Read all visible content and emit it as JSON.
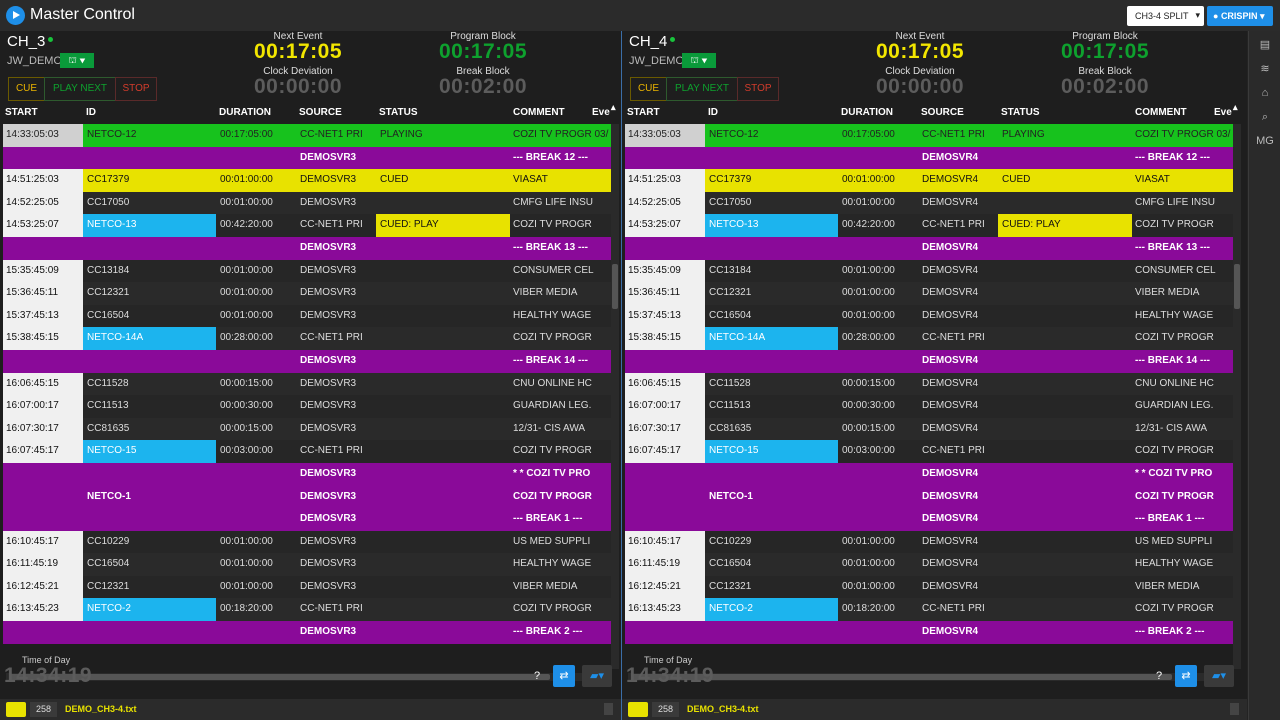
{
  "app": {
    "title": "Master Control",
    "split_select": "CH3-4 SPLIT",
    "user": "CRISPIN"
  },
  "sidebar": {
    "items": [
      "archive-icon",
      "layers-icon",
      "binoculars-icon",
      "search-icon",
      "MG"
    ]
  },
  "panels": [
    {
      "channel": "CH_3",
      "sub": "JW_DEMO",
      "next_event_label": "Next Event",
      "next_event": "00:17:05",
      "program_block_label": "Program Block",
      "program_block": "00:17:05",
      "clock_dev_label": "Clock Deviation",
      "clock_dev": "00:00:00",
      "break_block_label": "Break Block",
      "break_block": "00:02:00",
      "controls": {
        "cue": "CUE",
        "play_next": "PLAY NEXT",
        "stop": "STOP"
      },
      "columns": [
        "START",
        "ID",
        "DURATION",
        "SOURCE",
        "STATUS",
        "COMMENT",
        "Eve"
      ],
      "rows": [
        {
          "t": "playing",
          "start": "14:33:05:03",
          "id": "NETCO-12",
          "dur": "00:17:05:00",
          "src": "CC-NET1 PRI",
          "st": "PLAYING",
          "com": "COZI TV PROGR 03/"
        },
        {
          "t": "break",
          "start": "",
          "id": "",
          "dur": "",
          "src": "DEMOSVR3",
          "st": "",
          "com": "--- BREAK 12 ---"
        },
        {
          "t": "cued",
          "start": "14:51:25:03",
          "id": "CC17379",
          "dur": "00:01:00:00",
          "src": "DEMOSVR3",
          "st": "CUED",
          "com": "VIASAT"
        },
        {
          "t": "norm",
          "start": "14:52:25:05",
          "id": "CC17050",
          "dur": "00:01:00:00",
          "src": "DEMOSVR3",
          "st": "",
          "com": "CMFG LIFE INSU"
        },
        {
          "t": "norm",
          "blue": true,
          "cuedplay": true,
          "start": "14:53:25:07",
          "id": "NETCO-13",
          "dur": "00:42:20:00",
          "src": "CC-NET1 PRI",
          "st": "CUED: PLAY",
          "com": "COZI TV PROGR"
        },
        {
          "t": "break",
          "start": "",
          "id": "",
          "dur": "",
          "src": "DEMOSVR3",
          "st": "",
          "com": "--- BREAK 13 ---"
        },
        {
          "t": "norm",
          "start": "15:35:45:09",
          "id": "CC13184",
          "dur": "00:01:00:00",
          "src": "DEMOSVR3",
          "st": "",
          "com": "CONSUMER CEL"
        },
        {
          "t": "norm",
          "start": "15:36:45:11",
          "id": "CC12321",
          "dur": "00:01:00:00",
          "src": "DEMOSVR3",
          "st": "",
          "com": "VIBER MEDIA"
        },
        {
          "t": "norm",
          "start": "15:37:45:13",
          "id": "CC16504",
          "dur": "00:01:00:00",
          "src": "DEMOSVR3",
          "st": "",
          "com": "HEALTHY WAGE"
        },
        {
          "t": "norm",
          "blue": true,
          "start": "15:38:45:15",
          "id": "NETCO-14A",
          "dur": "00:28:00:00",
          "src": "CC-NET1 PRI",
          "st": "",
          "com": "COZI TV PROGR"
        },
        {
          "t": "break",
          "start": "",
          "id": "",
          "dur": "",
          "src": "DEMOSVR3",
          "st": "",
          "com": "--- BREAK 14 ---"
        },
        {
          "t": "norm",
          "start": "16:06:45:15",
          "id": "CC11528",
          "dur": "00:00:15:00",
          "src": "DEMOSVR3",
          "st": "",
          "com": "CNU ONLINE HC"
        },
        {
          "t": "norm",
          "start": "16:07:00:17",
          "id": "CC11513",
          "dur": "00:00:30:00",
          "src": "DEMOSVR3",
          "st": "",
          "com": "GUARDIAN LEG."
        },
        {
          "t": "norm",
          "start": "16:07:30:17",
          "id": "CC81635",
          "dur": "00:00:15:00",
          "src": "DEMOSVR3",
          "st": "",
          "com": "12/31- CIS AWA"
        },
        {
          "t": "norm",
          "blue": true,
          "start": "16:07:45:17",
          "id": "NETCO-15",
          "dur": "00:03:00:00",
          "src": "CC-NET1 PRI",
          "st": "",
          "com": "COZI TV PROGR"
        },
        {
          "t": "break",
          "start": "",
          "id": "",
          "dur": "",
          "src": "DEMOSVR3",
          "st": "",
          "com": "* * COZI TV PRO"
        },
        {
          "t": "break",
          "start": "",
          "id": "NETCO-1",
          "dur": "",
          "src": "DEMOSVR3",
          "st": "",
          "com": "COZI TV PROGR"
        },
        {
          "t": "break",
          "start": "",
          "id": "",
          "dur": "",
          "src": "DEMOSVR3",
          "st": "",
          "com": "--- BREAK 1 ---"
        },
        {
          "t": "norm",
          "start": "16:10:45:17",
          "id": "CC10229",
          "dur": "00:01:00:00",
          "src": "DEMOSVR3",
          "st": "",
          "com": "US MED SUPPLI"
        },
        {
          "t": "norm",
          "start": "16:11:45:19",
          "id": "CC16504",
          "dur": "00:01:00:00",
          "src": "DEMOSVR3",
          "st": "",
          "com": "HEALTHY WAGE"
        },
        {
          "t": "norm",
          "start": "16:12:45:21",
          "id": "CC12321",
          "dur": "00:01:00:00",
          "src": "DEMOSVR3",
          "st": "",
          "com": "VIBER MEDIA"
        },
        {
          "t": "norm",
          "blue": true,
          "start": "16:13:45:23",
          "id": "NETCO-2",
          "dur": "00:18:20:00",
          "src": "CC-NET1 PRI",
          "st": "",
          "com": "COZI TV PROGR"
        },
        {
          "t": "break",
          "start": "",
          "id": "",
          "dur": "",
          "src": "DEMOSVR3",
          "st": "",
          "com": "--- BREAK 2 ---"
        }
      ],
      "tod_label": "Time of Day",
      "tod": "14:34:19",
      "count": "258",
      "file": "DEMO_CH3-4.txt"
    },
    {
      "channel": "CH_4",
      "sub": "JW_DEMO",
      "next_event_label": "Next Event",
      "next_event": "00:17:05",
      "program_block_label": "Program Block",
      "program_block": "00:17:05",
      "clock_dev_label": "Clock Deviation",
      "clock_dev": "00:00:00",
      "break_block_label": "Break Block",
      "break_block": "00:02:00",
      "controls": {
        "cue": "CUE",
        "play_next": "PLAY NEXT",
        "stop": "STOP"
      },
      "columns": [
        "START",
        "ID",
        "DURATION",
        "SOURCE",
        "STATUS",
        "COMMENT",
        "Eve"
      ],
      "rows": [
        {
          "t": "playing",
          "start": "14:33:05:03",
          "id": "NETCO-12",
          "dur": "00:17:05:00",
          "src": "CC-NET1 PRI",
          "st": "PLAYING",
          "com": "COZI TV PROGR 03/"
        },
        {
          "t": "break",
          "start": "",
          "id": "",
          "dur": "",
          "src": "DEMOSVR4",
          "st": "",
          "com": "--- BREAK 12 ---"
        },
        {
          "t": "cued",
          "start": "14:51:25:03",
          "id": "CC17379",
          "dur": "00:01:00:00",
          "src": "DEMOSVR4",
          "st": "CUED",
          "com": "VIASAT"
        },
        {
          "t": "norm",
          "start": "14:52:25:05",
          "id": "CC17050",
          "dur": "00:01:00:00",
          "src": "DEMOSVR4",
          "st": "",
          "com": "CMFG LIFE INSU"
        },
        {
          "t": "norm",
          "blue": true,
          "cuedplay": true,
          "start": "14:53:25:07",
          "id": "NETCO-13",
          "dur": "00:42:20:00",
          "src": "CC-NET1 PRI",
          "st": "CUED: PLAY",
          "com": "COZI TV PROGR"
        },
        {
          "t": "break",
          "start": "",
          "id": "",
          "dur": "",
          "src": "DEMOSVR4",
          "st": "",
          "com": "--- BREAK 13 ---"
        },
        {
          "t": "norm",
          "start": "15:35:45:09",
          "id": "CC13184",
          "dur": "00:01:00:00",
          "src": "DEMOSVR4",
          "st": "",
          "com": "CONSUMER CEL"
        },
        {
          "t": "norm",
          "start": "15:36:45:11",
          "id": "CC12321",
          "dur": "00:01:00:00",
          "src": "DEMOSVR4",
          "st": "",
          "com": "VIBER MEDIA"
        },
        {
          "t": "norm",
          "start": "15:37:45:13",
          "id": "CC16504",
          "dur": "00:01:00:00",
          "src": "DEMOSVR4",
          "st": "",
          "com": "HEALTHY WAGE"
        },
        {
          "t": "norm",
          "blue": true,
          "start": "15:38:45:15",
          "id": "NETCO-14A",
          "dur": "00:28:00:00",
          "src": "CC-NET1 PRI",
          "st": "",
          "com": "COZI TV PROGR"
        },
        {
          "t": "break",
          "start": "",
          "id": "",
          "dur": "",
          "src": "DEMOSVR4",
          "st": "",
          "com": "--- BREAK 14 ---"
        },
        {
          "t": "norm",
          "start": "16:06:45:15",
          "id": "CC11528",
          "dur": "00:00:15:00",
          "src": "DEMOSVR4",
          "st": "",
          "com": "CNU ONLINE HC"
        },
        {
          "t": "norm",
          "start": "16:07:00:17",
          "id": "CC11513",
          "dur": "00:00:30:00",
          "src": "DEMOSVR4",
          "st": "",
          "com": "GUARDIAN LEG."
        },
        {
          "t": "norm",
          "start": "16:07:30:17",
          "id": "CC81635",
          "dur": "00:00:15:00",
          "src": "DEMOSVR4",
          "st": "",
          "com": "12/31- CIS AWA"
        },
        {
          "t": "norm",
          "blue": true,
          "start": "16:07:45:17",
          "id": "NETCO-15",
          "dur": "00:03:00:00",
          "src": "CC-NET1 PRI",
          "st": "",
          "com": "COZI TV PROGR"
        },
        {
          "t": "break",
          "start": "",
          "id": "",
          "dur": "",
          "src": "DEMOSVR4",
          "st": "",
          "com": "* * COZI TV PRO"
        },
        {
          "t": "break",
          "start": "",
          "id": "NETCO-1",
          "dur": "",
          "src": "DEMOSVR4",
          "st": "",
          "com": "COZI TV PROGR"
        },
        {
          "t": "break",
          "start": "",
          "id": "",
          "dur": "",
          "src": "DEMOSVR4",
          "st": "",
          "com": "--- BREAK 1 ---"
        },
        {
          "t": "norm",
          "start": "16:10:45:17",
          "id": "CC10229",
          "dur": "00:01:00:00",
          "src": "DEMOSVR4",
          "st": "",
          "com": "US MED SUPPLI"
        },
        {
          "t": "norm",
          "start": "16:11:45:19",
          "id": "CC16504",
          "dur": "00:01:00:00",
          "src": "DEMOSVR4",
          "st": "",
          "com": "HEALTHY WAGE"
        },
        {
          "t": "norm",
          "start": "16:12:45:21",
          "id": "CC12321",
          "dur": "00:01:00:00",
          "src": "DEMOSVR4",
          "st": "",
          "com": "VIBER MEDIA"
        },
        {
          "t": "norm",
          "blue": true,
          "start": "16:13:45:23",
          "id": "NETCO-2",
          "dur": "00:18:20:00",
          "src": "CC-NET1 PRI",
          "st": "",
          "com": "COZI TV PROGR"
        },
        {
          "t": "break",
          "start": "",
          "id": "",
          "dur": "",
          "src": "DEMOSVR4",
          "st": "",
          "com": "--- BREAK 2 ---"
        }
      ],
      "tod_label": "Time of Day",
      "tod": "14:34:19",
      "count": "258",
      "file": "DEMO_CH3-4.txt"
    }
  ],
  "footer_buttons": {
    "help": "?"
  }
}
